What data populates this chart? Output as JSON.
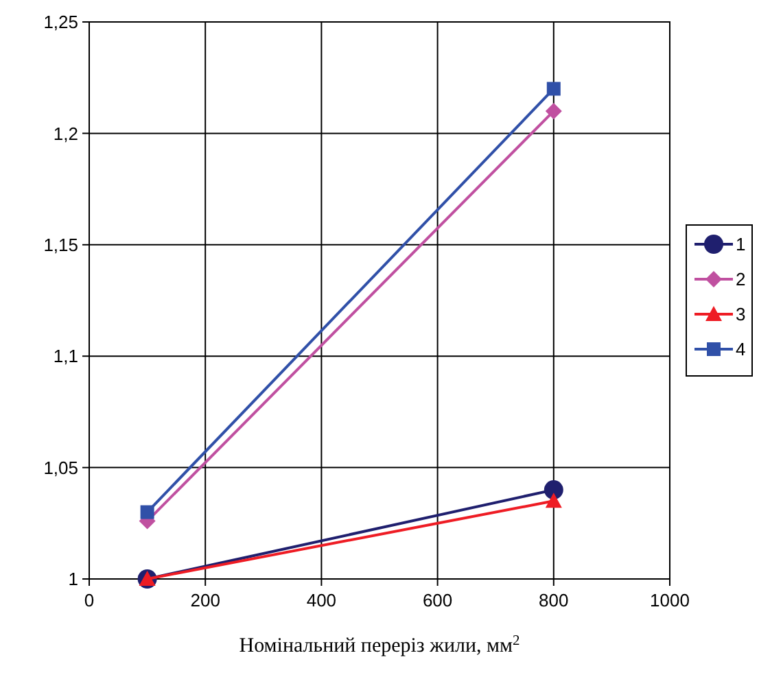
{
  "chart_data": {
    "type": "line",
    "xlabel": "Номінальний переріз жили, мм$^{2}$",
    "x": [
      100,
      800
    ],
    "series": [
      {
        "name": "1",
        "color": "#1f1f6e",
        "marker": "circle",
        "values": [
          1.0,
          1.04
        ]
      },
      {
        "name": "2",
        "color": "#c050a0",
        "marker": "diamond",
        "values": [
          1.026,
          1.21
        ]
      },
      {
        "name": "3",
        "color": "#ee1c24",
        "marker": "triangle",
        "values": [
          1.0,
          1.035
        ]
      },
      {
        "name": "4",
        "color": "#3050a8",
        "marker": "square",
        "values": [
          1.03,
          1.22
        ]
      }
    ],
    "xlim": [
      0,
      1000
    ],
    "xticks": [
      0,
      200,
      400,
      600,
      800,
      1000
    ],
    "ylim": [
      1,
      1.25
    ],
    "yticks": [
      {
        "value": 1,
        "label": "1"
      },
      {
        "value": 1.05,
        "label": "1,05"
      },
      {
        "value": 1.1,
        "label": "1,1"
      },
      {
        "value": 1.15,
        "label": "1,15"
      },
      {
        "value": 1.2,
        "label": "1,2"
      },
      {
        "value": 1.25,
        "label": "1,25"
      }
    ],
    "grid": true,
    "legend": "right",
    "line_style": "solid"
  }
}
